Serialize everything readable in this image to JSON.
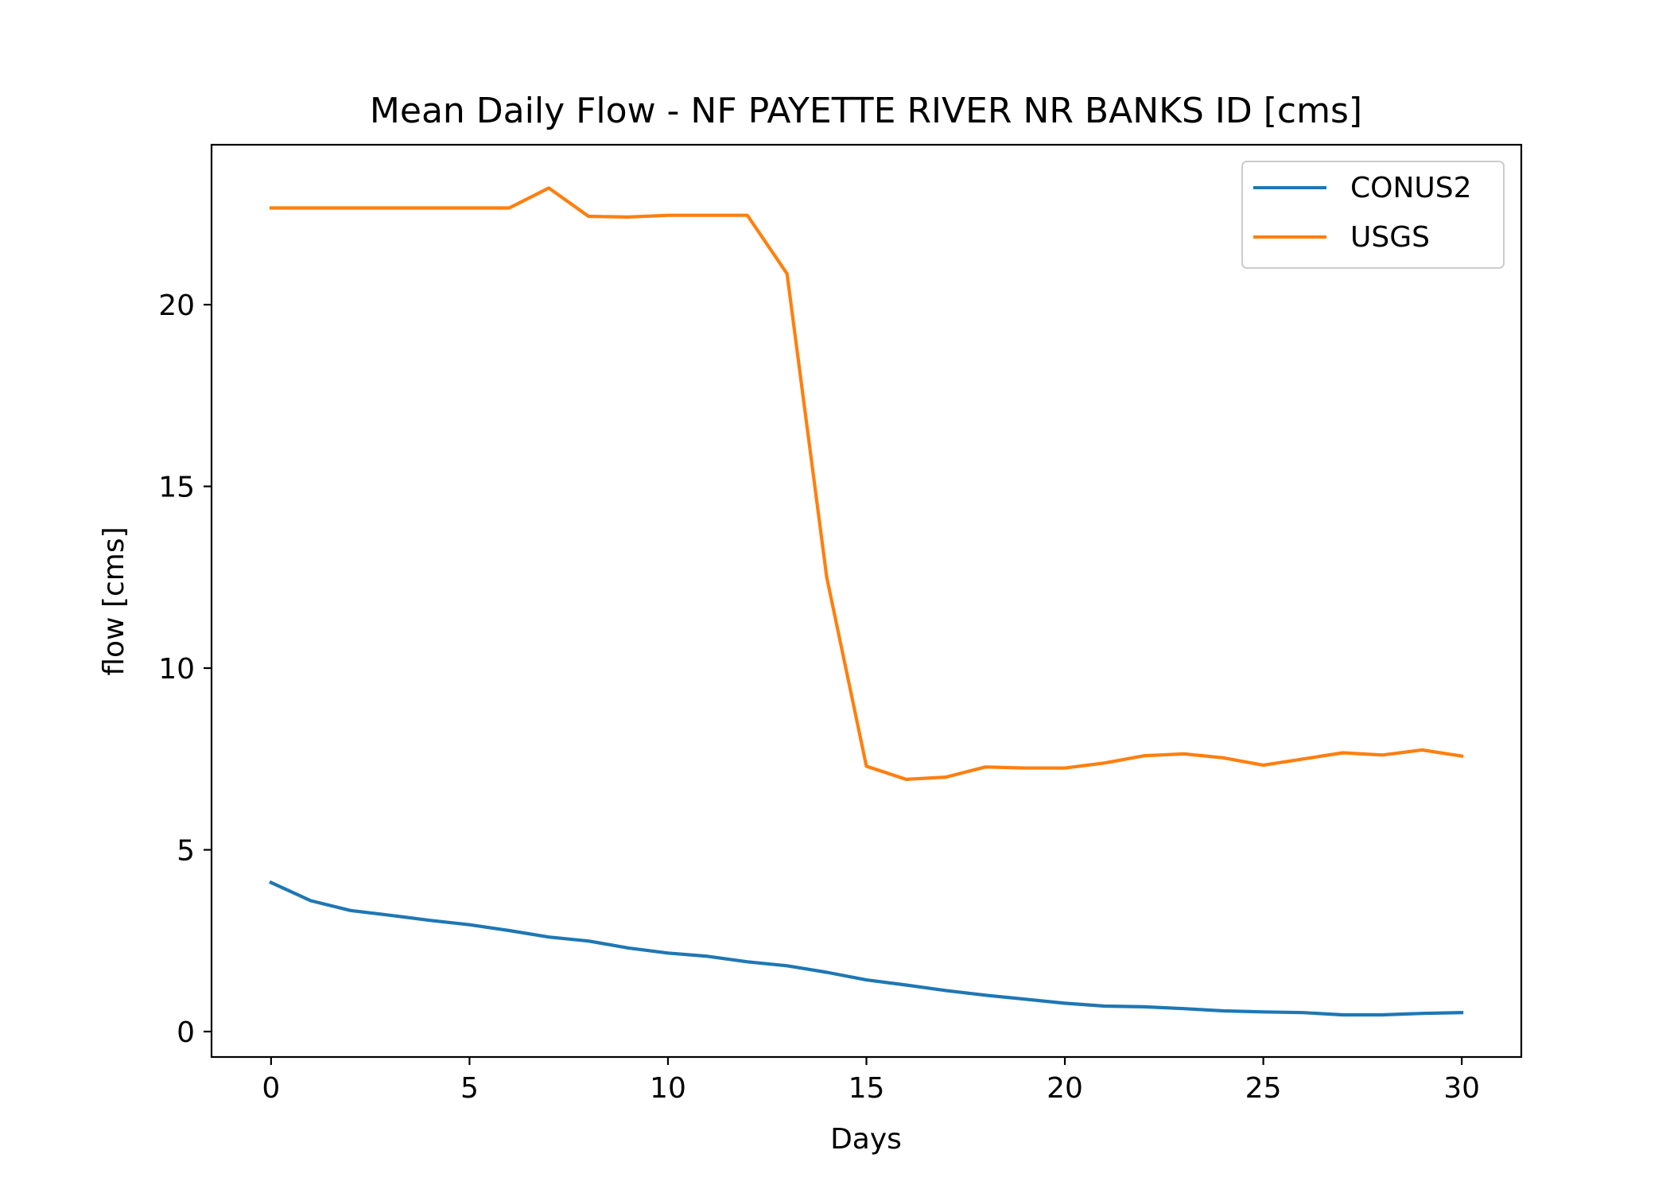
{
  "chart_data": {
    "type": "line",
    "title": "Mean Daily Flow - NF PAYETTE RIVER NR BANKS ID [cms]",
    "xlabel": "Days",
    "ylabel": "flow [cms]",
    "xlim": [
      -1.5,
      31.5
    ],
    "ylim": [
      -0.7,
      24.4
    ],
    "xticks": [
      0,
      5,
      10,
      15,
      20,
      25,
      30
    ],
    "yticks": [
      0,
      5,
      10,
      15,
      20
    ],
    "grid": false,
    "legend_position": "top-right",
    "x": [
      0,
      1,
      2,
      3,
      4,
      5,
      6,
      7,
      8,
      9,
      10,
      11,
      12,
      13,
      14,
      15,
      16,
      17,
      18,
      19,
      20,
      21,
      22,
      23,
      24,
      25,
      26,
      27,
      28,
      29,
      30
    ],
    "series": [
      {
        "name": "CONUS2",
        "color": "#1f77b4",
        "values": [
          4.1,
          3.6,
          3.33,
          3.2,
          3.06,
          2.94,
          2.78,
          2.6,
          2.49,
          2.3,
          2.16,
          2.07,
          1.92,
          1.81,
          1.63,
          1.42,
          1.28,
          1.13,
          1.0,
          0.89,
          0.78,
          0.7,
          0.68,
          0.63,
          0.57,
          0.54,
          0.52,
          0.46,
          0.46,
          0.5,
          0.52
        ]
      },
      {
        "name": "USGS",
        "color": "#ff7f0e",
        "values": [
          22.66,
          22.66,
          22.66,
          22.66,
          22.66,
          22.66,
          22.66,
          23.21,
          22.43,
          22.41,
          22.46,
          22.46,
          22.46,
          20.85,
          12.5,
          7.3,
          6.94,
          7.0,
          7.28,
          7.25,
          7.25,
          7.39,
          7.59,
          7.64,
          7.53,
          7.33,
          7.5,
          7.67,
          7.61,
          7.75,
          7.58
        ]
      }
    ]
  }
}
